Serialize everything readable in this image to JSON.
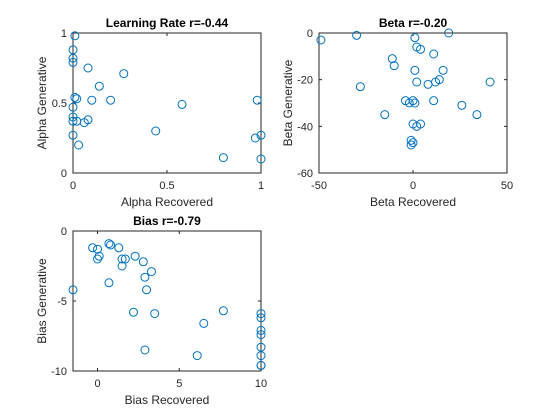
{
  "colors": {
    "marker": "#0072BD",
    "axis": "#262626"
  },
  "chart_data": [
    {
      "type": "scatter",
      "title": "Learning Rate r=-0.44",
      "xlabel": "Alpha Recovered",
      "ylabel": "Alpha Generative",
      "xlim": [
        0,
        1
      ],
      "ylim": [
        0,
        1
      ],
      "xticks": [
        0,
        0.5,
        1
      ],
      "xtick_labels": [
        "0",
        "0.5",
        "1"
      ],
      "yticks": [
        0,
        0.5,
        1
      ],
      "ytick_labels": [
        "0",
        "0.5",
        "1"
      ],
      "x": [
        0.01,
        0.0,
        0.0,
        0.0,
        0.08,
        0.27,
        0.14,
        0.01,
        0.02,
        0.1,
        0.2,
        0.0,
        0.0,
        0.08,
        0.06,
        0.0,
        0.02,
        0.0,
        0.03,
        0.44,
        0.58,
        0.8,
        0.98,
        1.0,
        0.97,
        1.0
      ],
      "y": [
        0.98,
        0.88,
        0.82,
        0.79,
        0.75,
        0.71,
        0.62,
        0.54,
        0.53,
        0.52,
        0.52,
        0.47,
        0.4,
        0.38,
        0.36,
        0.37,
        0.37,
        0.27,
        0.2,
        0.3,
        0.49,
        0.11,
        0.52,
        0.27,
        0.25,
        0.1
      ]
    },
    {
      "type": "scatter",
      "title": "Beta r=-0.20",
      "xlabel": "Beta Recovered",
      "ylabel": "Beta Generative",
      "xlim": [
        -50,
        50
      ],
      "ylim": [
        -60,
        0
      ],
      "xticks": [
        -50,
        0,
        50
      ],
      "xtick_labels": [
        "-50",
        "0",
        "50"
      ],
      "yticks": [
        -60,
        -40,
        -20,
        0
      ],
      "ytick_labels": [
        "-60",
        "-40",
        "-20",
        "0"
      ],
      "x": [
        -49,
        -30,
        19,
        1,
        2,
        4,
        11,
        -11,
        1,
        14,
        12,
        -10,
        2,
        -28,
        -4,
        0,
        8,
        16,
        26,
        -2,
        -1,
        2,
        11,
        0,
        4,
        1,
        -1,
        -15,
        34,
        41,
        0
      ],
      "y": [
        -3,
        -1,
        0,
        -2,
        -6,
        -7,
        -9,
        -11,
        -16,
        -20,
        -21,
        -14,
        -21,
        -23,
        -29,
        -29,
        -22,
        -16,
        -31,
        -30,
        -46,
        -40,
        -29,
        -39,
        -39,
        -30,
        -48,
        -35,
        -35,
        -21,
        -47
      ]
    },
    {
      "type": "scatter",
      "title": "Bias r=-0.79",
      "xlabel": "Bias Recovered",
      "ylabel": "Bias Generative",
      "xlim": [
        -1.5,
        10
      ],
      "ylim": [
        -10,
        0
      ],
      "xticks": [
        0,
        5,
        10
      ],
      "xtick_labels": [
        "0",
        "5",
        "10"
      ],
      "yticks": [
        -10,
        -5,
        0
      ],
      "ytick_labels": [
        "-10",
        "-5",
        "0"
      ],
      "x": [
        -0.3,
        0.0,
        0.1,
        0.0,
        0.7,
        0.8,
        1.3,
        1.5,
        1.7,
        1.5,
        2.3,
        2.8,
        0.7,
        3.3,
        2.9,
        3.0,
        -1.5,
        3.5,
        2.2,
        7.7,
        6.5,
        10.0,
        10.0,
        10.0,
        10.0,
        10.0,
        10.0,
        10.0,
        10.0,
        6.1,
        2.9
      ],
      "y": [
        -1.2,
        -1.3,
        -1.8,
        -2.0,
        -0.9,
        -1.0,
        -1.2,
        -2.0,
        -2.0,
        -2.5,
        -1.8,
        -2.2,
        -3.7,
        -2.9,
        -3.3,
        -4.2,
        -4.2,
        -5.9,
        -5.8,
        -5.7,
        -6.6,
        -5.9,
        -6.2,
        -7.1,
        -7.4,
        -8.3,
        -8.9,
        -9.6,
        -9.6,
        -8.9,
        -8.5
      ]
    }
  ]
}
